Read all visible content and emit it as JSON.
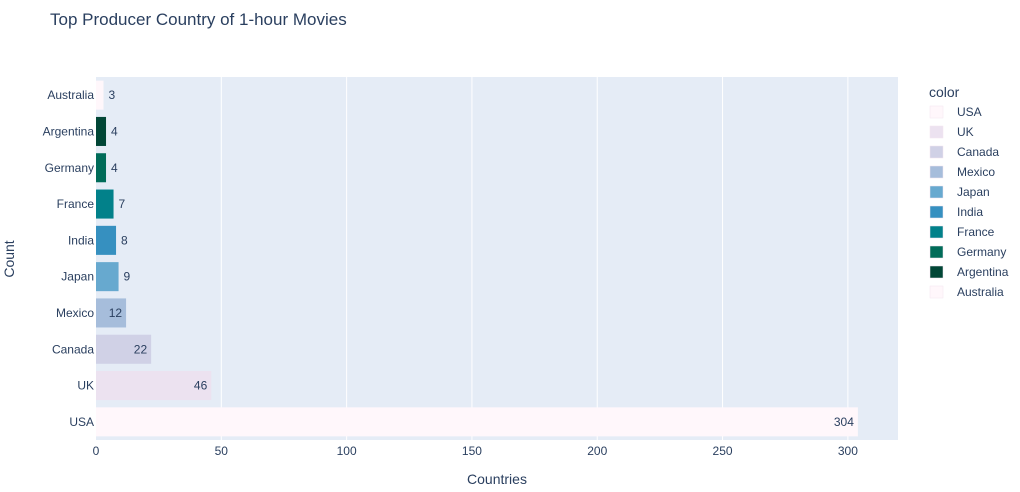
{
  "chart_data": {
    "type": "bar",
    "orientation": "horizontal",
    "title": "Top Producer Country of 1-hour Movies",
    "xlabel": "Countries",
    "ylabel": "Count",
    "xlim": [
      0,
      320
    ],
    "x_ticks": [
      0,
      50,
      100,
      150,
      200,
      250,
      300
    ],
    "grid": true,
    "legend_title": "color",
    "legend_position": "right",
    "categories": [
      "USA",
      "UK",
      "Canada",
      "Mexico",
      "Japan",
      "India",
      "France",
      "Germany",
      "Argentina",
      "Australia"
    ],
    "values": [
      304,
      46,
      22,
      12,
      9,
      8,
      7,
      4,
      4,
      3
    ],
    "colors": [
      "#fff7fb",
      "#ece2f0",
      "#d0d1e6",
      "#a6bddb",
      "#67a9cf",
      "#3690c0",
      "#02818a",
      "#016c59",
      "#014636",
      "#fff7fb"
    ],
    "label_colors": [
      "#2a3f5f",
      "#2a3f5f",
      "#2a3f5f",
      "#2a3f5f",
      "#2a3f5f",
      "#ffffff",
      "#2a3f5f",
      "#2a3f5f",
      "#2a3f5f",
      "#2a3f5f"
    ],
    "plot_background": "#e5ecf6"
  }
}
